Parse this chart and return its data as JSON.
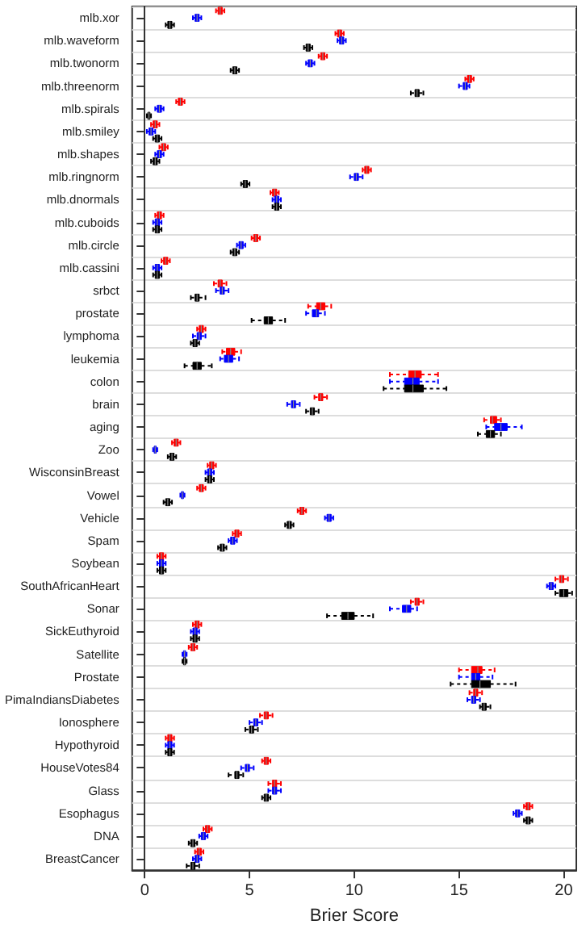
{
  "chart_data": {
    "type": "box",
    "orientation": "horizontal",
    "xlabel": "Brier Score",
    "xlim": [
      -0.6,
      20.6
    ],
    "xticks": [
      0,
      5,
      10,
      15,
      20
    ],
    "grid": "y",
    "categories": [
      "mlb.xor",
      "mlb.waveform",
      "mlb.twonorm",
      "mlb.threenorm",
      "mlb.spirals",
      "mlb.smiley",
      "mlb.shapes",
      "mlb.ringnorm",
      "mlb.dnormals",
      "mlb.cuboids",
      "mlb.circle",
      "mlb.cassini",
      "srbct",
      "prostate",
      "lymphoma",
      "leukemia",
      "colon",
      "brain",
      "aging",
      "Zoo",
      "WisconsinBreast",
      "Vowel",
      "Vehicle",
      "Spam",
      "Soybean",
      "SouthAfricanHeart",
      "Sonar",
      "SickEuthyroid",
      "Satellite",
      "Prostate",
      "PimaIndiansDiabetes",
      "Ionosphere",
      "Hypothyroid",
      "HouseVotes84",
      "Glass",
      "Esophagus",
      "DNA",
      "BreastCancer"
    ],
    "series": [
      {
        "color": "#ff0000",
        "boxes": [
          {
            "low": 3.4,
            "q1": 3.5,
            "median": 3.6,
            "q3": 3.7,
            "high": 3.8
          },
          {
            "low": 9.1,
            "q1": 9.2,
            "median": 9.3,
            "q3": 9.4,
            "high": 9.5
          },
          {
            "low": 8.3,
            "q1": 8.4,
            "median": 8.5,
            "q3": 8.6,
            "high": 8.7
          },
          {
            "low": 15.3,
            "q1": 15.4,
            "median": 15.5,
            "q3": 15.6,
            "high": 15.7
          },
          {
            "low": 1.5,
            "q1": 1.6,
            "median": 1.7,
            "q3": 1.8,
            "high": 1.9
          },
          {
            "low": 0.3,
            "q1": 0.4,
            "median": 0.5,
            "q3": 0.6,
            "high": 0.7
          },
          {
            "low": 0.7,
            "q1": 0.8,
            "median": 0.9,
            "q3": 1.0,
            "high": 1.1
          },
          {
            "low": 10.4,
            "q1": 10.5,
            "median": 10.6,
            "q3": 10.7,
            "high": 10.8
          },
          {
            "low": 6.0,
            "q1": 6.1,
            "median": 6.2,
            "q3": 6.3,
            "high": 6.4
          },
          {
            "low": 0.5,
            "q1": 0.6,
            "median": 0.7,
            "q3": 0.8,
            "high": 0.9
          },
          {
            "low": 5.1,
            "q1": 5.2,
            "median": 5.3,
            "q3": 5.4,
            "high": 5.5
          },
          {
            "low": 0.8,
            "q1": 0.9,
            "median": 1.0,
            "q3": 1.1,
            "high": 1.2
          },
          {
            "low": 3.3,
            "q1": 3.5,
            "median": 3.6,
            "q3": 3.7,
            "high": 3.9
          },
          {
            "low": 7.8,
            "q1": 8.2,
            "median": 8.4,
            "q3": 8.6,
            "high": 8.9
          },
          {
            "low": 2.5,
            "q1": 2.6,
            "median": 2.7,
            "q3": 2.8,
            "high": 2.9
          },
          {
            "low": 3.7,
            "q1": 3.9,
            "median": 4.1,
            "q3": 4.3,
            "high": 4.6
          },
          {
            "low": 11.7,
            "q1": 12.6,
            "median": 12.9,
            "q3": 13.2,
            "high": 14.0
          },
          {
            "low": 8.1,
            "q1": 8.3,
            "median": 8.4,
            "q3": 8.5,
            "high": 8.7
          },
          {
            "low": 16.2,
            "q1": 16.5,
            "median": 16.6,
            "q3": 16.8,
            "high": 17.0
          },
          {
            "low": 1.3,
            "q1": 1.4,
            "median": 1.5,
            "q3": 1.6,
            "high": 1.7
          },
          {
            "low": 3.0,
            "q1": 3.1,
            "median": 3.2,
            "q3": 3.3,
            "high": 3.4
          },
          {
            "low": 2.5,
            "q1": 2.6,
            "median": 2.7,
            "q3": 2.8,
            "high": 2.9
          },
          {
            "low": 7.3,
            "q1": 7.4,
            "median": 7.5,
            "q3": 7.6,
            "high": 7.7
          },
          {
            "low": 4.2,
            "q1": 4.3,
            "median": 4.4,
            "q3": 4.5,
            "high": 4.6
          },
          {
            "low": 0.6,
            "q1": 0.7,
            "median": 0.8,
            "q3": 0.9,
            "high": 1.0
          },
          {
            "low": 19.6,
            "q1": 19.8,
            "median": 19.9,
            "q3": 20.0,
            "high": 20.2
          },
          {
            "low": 12.7,
            "q1": 12.9,
            "median": 13.0,
            "q3": 13.1,
            "high": 13.3
          },
          {
            "low": 2.3,
            "q1": 2.4,
            "median": 2.5,
            "q3": 2.6,
            "high": 2.7
          },
          {
            "low": 2.1,
            "q1": 2.2,
            "median": 2.3,
            "q3": 2.4,
            "high": 2.5
          },
          {
            "low": 15.0,
            "q1": 15.6,
            "median": 15.9,
            "q3": 16.1,
            "high": 16.7
          },
          {
            "low": 15.5,
            "q1": 15.7,
            "median": 15.8,
            "q3": 15.9,
            "high": 16.1
          },
          {
            "low": 5.5,
            "q1": 5.7,
            "median": 5.8,
            "q3": 5.9,
            "high": 6.1
          },
          {
            "low": 1.0,
            "q1": 1.1,
            "median": 1.2,
            "q3": 1.3,
            "high": 1.4
          },
          {
            "low": 5.6,
            "q1": 5.7,
            "median": 5.8,
            "q3": 5.9,
            "high": 6.0
          },
          {
            "low": 5.9,
            "q1": 6.1,
            "median": 6.2,
            "q3": 6.3,
            "high": 6.5
          },
          {
            "low": 18.1,
            "q1": 18.2,
            "median": 18.3,
            "q3": 18.4,
            "high": 18.5
          },
          {
            "low": 2.8,
            "q1": 2.9,
            "median": 3.0,
            "q3": 3.1,
            "high": 3.2
          },
          {
            "low": 2.4,
            "q1": 2.5,
            "median": 2.6,
            "q3": 2.7,
            "high": 2.8
          }
        ]
      },
      {
        "color": "#0000ff",
        "boxes": [
          {
            "low": 2.3,
            "q1": 2.4,
            "median": 2.5,
            "q3": 2.6,
            "high": 2.7
          },
          {
            "low": 9.2,
            "q1": 9.3,
            "median": 9.4,
            "q3": 9.5,
            "high": 9.6
          },
          {
            "low": 7.7,
            "q1": 7.8,
            "median": 7.9,
            "q3": 8.0,
            "high": 8.1
          },
          {
            "low": 15.0,
            "q1": 15.2,
            "median": 15.3,
            "q3": 15.4,
            "high": 15.5
          },
          {
            "low": 0.5,
            "q1": 0.6,
            "median": 0.7,
            "q3": 0.8,
            "high": 0.9
          },
          {
            "low": 0.1,
            "q1": 0.2,
            "median": 0.3,
            "q3": 0.4,
            "high": 0.5
          },
          {
            "low": 0.5,
            "q1": 0.6,
            "median": 0.7,
            "q3": 0.8,
            "high": 0.9
          },
          {
            "low": 9.8,
            "q1": 10.0,
            "median": 10.1,
            "q3": 10.2,
            "high": 10.4
          },
          {
            "low": 6.1,
            "q1": 6.2,
            "median": 6.3,
            "q3": 6.4,
            "high": 6.5
          },
          {
            "low": 0.4,
            "q1": 0.5,
            "median": 0.6,
            "q3": 0.7,
            "high": 0.8
          },
          {
            "low": 4.4,
            "q1": 4.5,
            "median": 4.6,
            "q3": 4.7,
            "high": 4.8
          },
          {
            "low": 0.4,
            "q1": 0.5,
            "median": 0.6,
            "q3": 0.7,
            "high": 0.8
          },
          {
            "low": 3.4,
            "q1": 3.6,
            "median": 3.7,
            "q3": 3.8,
            "high": 4.0
          },
          {
            "low": 7.7,
            "q1": 8.0,
            "median": 8.2,
            "q3": 8.3,
            "high": 8.6
          },
          {
            "low": 2.3,
            "q1": 2.5,
            "median": 2.6,
            "q3": 2.7,
            "high": 2.9
          },
          {
            "low": 3.6,
            "q1": 3.8,
            "median": 4.0,
            "q3": 4.2,
            "high": 4.5
          },
          {
            "low": 11.7,
            "q1": 12.4,
            "median": 12.8,
            "q3": 13.1,
            "high": 14.0
          },
          {
            "low": 6.8,
            "q1": 7.0,
            "median": 7.1,
            "q3": 7.2,
            "high": 7.4
          },
          {
            "low": 16.3,
            "q1": 16.7,
            "median": 17.0,
            "q3": 17.3,
            "high": 18.0
          },
          {
            "low": 0.4,
            "q1": 0.45,
            "median": 0.5,
            "q3": 0.55,
            "high": 0.6
          },
          {
            "low": 2.9,
            "q1": 3.0,
            "median": 3.1,
            "q3": 3.2,
            "high": 3.3
          },
          {
            "low": 1.7,
            "q1": 1.75,
            "median": 1.8,
            "q3": 1.85,
            "high": 1.9
          },
          {
            "low": 8.6,
            "q1": 8.7,
            "median": 8.8,
            "q3": 8.9,
            "high": 9.0
          },
          {
            "low": 4.0,
            "q1": 4.1,
            "median": 4.2,
            "q3": 4.3,
            "high": 4.4
          },
          {
            "low": 0.6,
            "q1": 0.7,
            "median": 0.8,
            "q3": 0.9,
            "high": 1.0
          },
          {
            "low": 19.2,
            "q1": 19.3,
            "median": 19.4,
            "q3": 19.5,
            "high": 19.6
          },
          {
            "low": 11.7,
            "q1": 12.3,
            "median": 12.5,
            "q3": 12.7,
            "high": 13.0
          },
          {
            "low": 2.2,
            "q1": 2.3,
            "median": 2.4,
            "q3": 2.5,
            "high": 2.6
          },
          {
            "low": 1.8,
            "q1": 1.85,
            "median": 1.9,
            "q3": 1.95,
            "high": 2.0
          },
          {
            "low": 15.0,
            "q1": 15.6,
            "median": 15.8,
            "q3": 16.0,
            "high": 16.6
          },
          {
            "low": 15.4,
            "q1": 15.6,
            "median": 15.7,
            "q3": 15.8,
            "high": 16.0
          },
          {
            "low": 5.0,
            "q1": 5.2,
            "median": 5.3,
            "q3": 5.4,
            "high": 5.6
          },
          {
            "low": 1.0,
            "q1": 1.1,
            "median": 1.2,
            "q3": 1.3,
            "high": 1.4
          },
          {
            "low": 4.6,
            "q1": 4.8,
            "median": 4.9,
            "q3": 5.0,
            "high": 5.2
          },
          {
            "low": 5.9,
            "q1": 6.1,
            "median": 6.2,
            "q3": 6.3,
            "high": 6.5
          },
          {
            "low": 17.6,
            "q1": 17.7,
            "median": 17.8,
            "q3": 17.9,
            "high": 18.0
          },
          {
            "low": 2.6,
            "q1": 2.7,
            "median": 2.8,
            "q3": 2.9,
            "high": 3.0
          },
          {
            "low": 2.3,
            "q1": 2.4,
            "median": 2.5,
            "q3": 2.6,
            "high": 2.7
          }
        ]
      },
      {
        "color": "#000000",
        "boxes": [
          {
            "low": 1.0,
            "q1": 1.1,
            "median": 1.2,
            "q3": 1.3,
            "high": 1.4
          },
          {
            "low": 7.6,
            "q1": 7.7,
            "median": 7.8,
            "q3": 7.9,
            "high": 8.0
          },
          {
            "low": 4.1,
            "q1": 4.2,
            "median": 4.3,
            "q3": 4.4,
            "high": 4.5
          },
          {
            "low": 12.7,
            "q1": 12.9,
            "median": 13.0,
            "q3": 13.1,
            "high": 13.3
          },
          {
            "low": 0.1,
            "q1": 0.15,
            "median": 0.2,
            "q3": 0.25,
            "high": 0.3
          },
          {
            "low": 0.4,
            "q1": 0.5,
            "median": 0.6,
            "q3": 0.7,
            "high": 0.8
          },
          {
            "low": 0.3,
            "q1": 0.4,
            "median": 0.5,
            "q3": 0.6,
            "high": 0.7
          },
          {
            "low": 4.6,
            "q1": 4.7,
            "median": 4.8,
            "q3": 4.9,
            "high": 5.0
          },
          {
            "low": 6.1,
            "q1": 6.2,
            "median": 6.3,
            "q3": 6.4,
            "high": 6.5
          },
          {
            "low": 0.4,
            "q1": 0.5,
            "median": 0.6,
            "q3": 0.7,
            "high": 0.8
          },
          {
            "low": 4.1,
            "q1": 4.2,
            "median": 4.3,
            "q3": 4.4,
            "high": 4.5
          },
          {
            "low": 0.4,
            "q1": 0.5,
            "median": 0.6,
            "q3": 0.7,
            "high": 0.8
          },
          {
            "low": 2.2,
            "q1": 2.4,
            "median": 2.5,
            "q3": 2.6,
            "high": 2.9
          },
          {
            "low": 5.1,
            "q1": 5.7,
            "median": 5.9,
            "q3": 6.1,
            "high": 6.7
          },
          {
            "low": 2.2,
            "q1": 2.3,
            "median": 2.4,
            "q3": 2.5,
            "high": 2.6
          },
          {
            "low": 1.9,
            "q1": 2.3,
            "median": 2.5,
            "q3": 2.7,
            "high": 3.2
          },
          {
            "low": 11.4,
            "q1": 12.4,
            "median": 12.8,
            "q3": 13.3,
            "high": 14.4
          },
          {
            "low": 7.7,
            "q1": 7.9,
            "median": 8.0,
            "q3": 8.1,
            "high": 8.3
          },
          {
            "low": 15.9,
            "q1": 16.3,
            "median": 16.5,
            "q3": 16.7,
            "high": 17.0
          },
          {
            "low": 1.1,
            "q1": 1.2,
            "median": 1.3,
            "q3": 1.4,
            "high": 1.5
          },
          {
            "low": 2.9,
            "q1": 3.0,
            "median": 3.1,
            "q3": 3.2,
            "high": 3.3
          },
          {
            "low": 0.9,
            "q1": 1.0,
            "median": 1.1,
            "q3": 1.2,
            "high": 1.3
          },
          {
            "low": 6.7,
            "q1": 6.8,
            "median": 6.9,
            "q3": 7.0,
            "high": 7.1
          },
          {
            "low": 3.5,
            "q1": 3.6,
            "median": 3.7,
            "q3": 3.8,
            "high": 3.9
          },
          {
            "low": 0.6,
            "q1": 0.7,
            "median": 0.8,
            "q3": 0.9,
            "high": 1.0
          },
          {
            "low": 19.6,
            "q1": 19.8,
            "median": 20.0,
            "q3": 20.2,
            "high": 20.4
          },
          {
            "low": 8.7,
            "q1": 9.4,
            "median": 9.7,
            "q3": 10.0,
            "high": 10.9
          },
          {
            "low": 2.2,
            "q1": 2.3,
            "median": 2.4,
            "q3": 2.5,
            "high": 2.6
          },
          {
            "low": 1.8,
            "q1": 1.85,
            "median": 1.9,
            "q3": 1.95,
            "high": 2.0
          },
          {
            "low": 14.6,
            "q1": 15.6,
            "median": 16.0,
            "q3": 16.5,
            "high": 17.7
          },
          {
            "low": 16.0,
            "q1": 16.1,
            "median": 16.2,
            "q3": 16.3,
            "high": 16.5
          },
          {
            "low": 4.8,
            "q1": 5.0,
            "median": 5.1,
            "q3": 5.2,
            "high": 5.4
          },
          {
            "low": 1.0,
            "q1": 1.1,
            "median": 1.2,
            "q3": 1.3,
            "high": 1.4
          },
          {
            "low": 4.0,
            "q1": 4.3,
            "median": 4.4,
            "q3": 4.5,
            "high": 4.7
          },
          {
            "low": 5.6,
            "q1": 5.7,
            "median": 5.8,
            "q3": 5.9,
            "high": 6.0
          },
          {
            "low": 18.1,
            "q1": 18.2,
            "median": 18.3,
            "q3": 18.4,
            "high": 18.5
          },
          {
            "low": 2.1,
            "q1": 2.2,
            "median": 2.3,
            "q3": 2.4,
            "high": 2.5
          },
          {
            "low": 2.0,
            "q1": 2.2,
            "median": 2.3,
            "q3": 2.4,
            "high": 2.6
          }
        ]
      }
    ]
  }
}
